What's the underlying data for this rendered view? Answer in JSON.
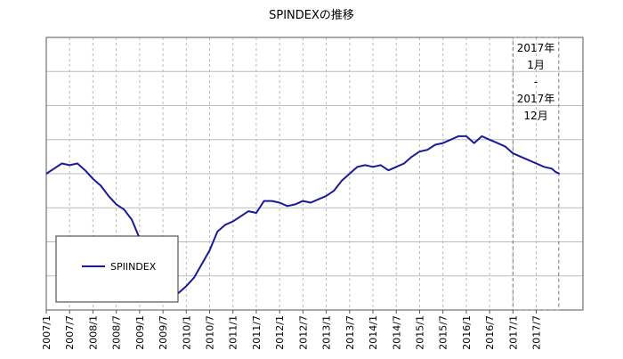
{
  "chart_data": {
    "type": "line",
    "title": "SPINDEXの推移",
    "xlabel": "",
    "ylabel": "",
    "categories": [
      "2007/1",
      "2007/7",
      "2008/1",
      "2008/7",
      "2009/1",
      "2009/7",
      "2010/1",
      "2010/7",
      "2011/1",
      "2011/7",
      "2012/1",
      "2012/7",
      "2013/1",
      "2013/7",
      "2014/1",
      "2014/7",
      "2015/1",
      "2015/7",
      "2016/1",
      "2016/7",
      "2017/1",
      "2017/7"
    ],
    "ylim": [
      0,
      8
    ],
    "grid": true,
    "legend_position": "lower-left",
    "series": [
      {
        "name": "SPIINDEX",
        "color": "#1a1a99",
        "x": [
          0,
          2,
          4,
          6,
          8,
          10,
          12,
          14,
          16,
          18,
          20,
          22,
          24,
          26,
          28,
          30,
          32,
          34,
          36,
          38,
          40,
          42,
          44,
          46,
          48,
          50,
          52,
          54,
          56,
          58,
          60,
          62,
          64,
          66,
          68,
          70,
          72,
          74,
          76,
          78,
          80,
          82,
          84,
          86,
          88,
          90,
          92,
          94,
          96,
          98,
          100,
          102,
          104,
          106,
          108,
          110,
          112,
          114,
          116,
          118,
          120,
          122,
          124,
          126,
          128,
          130,
          131,
          132
        ],
        "values": [
          4.0,
          4.15,
          4.3,
          4.25,
          4.3,
          4.1,
          3.85,
          3.65,
          3.35,
          3.1,
          2.95,
          2.65,
          2.1,
          1.55,
          1.05,
          0.8,
          0.6,
          0.5,
          0.7,
          0.95,
          1.35,
          1.75,
          2.3,
          2.5,
          2.6,
          2.75,
          2.9,
          2.85,
          3.2,
          3.2,
          3.15,
          3.05,
          3.1,
          3.2,
          3.15,
          3.25,
          3.35,
          3.5,
          3.8,
          4.0,
          4.2,
          4.25,
          4.2,
          4.25,
          4.1,
          4.2,
          4.3,
          4.5,
          4.65,
          4.7,
          4.85,
          4.9,
          5.0,
          5.1,
          5.1,
          4.9,
          5.1,
          5.0,
          4.9,
          4.8,
          4.6,
          4.5,
          4.4,
          4.3,
          4.2,
          4.15,
          4.05,
          4.0
        ]
      }
    ],
    "highlight": {
      "start_index": 120,
      "end_index": 131,
      "label_lines": [
        "2017年",
        "1月",
        "-",
        "2017年",
        "12月"
      ]
    }
  }
}
